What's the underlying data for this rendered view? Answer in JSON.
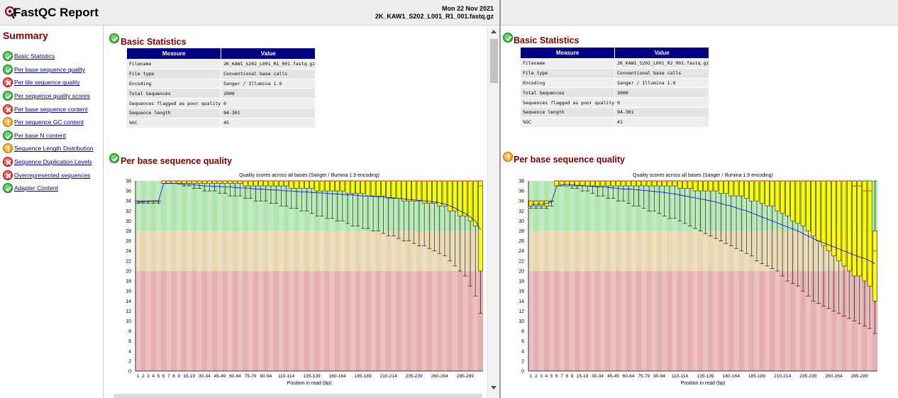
{
  "header": {
    "app_title": "FastQC Report",
    "date": "Mon 22 Nov 2021",
    "filename": "2K_KAW1_S202_L001_R1_001.fastq.gz"
  },
  "summary": {
    "title": "Summary",
    "items": [
      {
        "label": "Basic Statistics",
        "status": "pass"
      },
      {
        "label": "Per base sequence quality",
        "status": "pass"
      },
      {
        "label": "Per tile sequence quality",
        "status": "fail"
      },
      {
        "label": "Per sequence quality scores",
        "status": "pass"
      },
      {
        "label": "Per base sequence content",
        "status": "fail"
      },
      {
        "label": "Per sequence GC content",
        "status": "warn"
      },
      {
        "label": "Per base N content",
        "status": "pass"
      },
      {
        "label": "Sequence Length Distribution",
        "status": "warn"
      },
      {
        "label": "Sequence Duplication Levels",
        "status": "fail"
      },
      {
        "label": "Overrepresented sequences",
        "status": "fail"
      },
      {
        "label": "Adapter Content",
        "status": "pass"
      }
    ]
  },
  "left": {
    "basic_title": "Basic Statistics",
    "basic_status": "pass",
    "table_headers": [
      "Measure",
      "Value"
    ],
    "rows": [
      {
        "measure": "Filename",
        "value": "2K_KAW1_S202_L001_R1_001.fastq.gz"
      },
      {
        "measure": "File type",
        "value": "Conventional base calls"
      },
      {
        "measure": "Encoding",
        "value": "Sanger / Illumina 1.9"
      },
      {
        "measure": "Total Sequences",
        "value": "2000"
      },
      {
        "measure": "Sequences flagged as poor quality",
        "value": "0"
      },
      {
        "measure": "Sequence length",
        "value": "94-301"
      },
      {
        "measure": "%GC",
        "value": "45"
      }
    ],
    "quality_title": "Per base sequence quality",
    "quality_status": "pass"
  },
  "right": {
    "basic_title": "Basic Statistics",
    "basic_status": "pass",
    "table_headers": [
      "Measure",
      "Value"
    ],
    "rows": [
      {
        "measure": "Filename",
        "value": "2K_KAW1_S202_L001_R2_001.fastq.gz"
      },
      {
        "measure": "File type",
        "value": "Conventional base calls"
      },
      {
        "measure": "Encoding",
        "value": "Sanger / Illumina 1.9"
      },
      {
        "measure": "Total Sequences",
        "value": "2000"
      },
      {
        "measure": "Sequences flagged as poor quality",
        "value": "0"
      },
      {
        "measure": "Sequence length",
        "value": "94-301"
      },
      {
        "measure": "%GC",
        "value": "41"
      }
    ],
    "quality_title": "Per base sequence quality",
    "quality_status": "warn"
  },
  "chart_data": [
    {
      "type": "boxplot",
      "title": "Quality scores across all bases (Sanger / Illumina 1.9 encoding)",
      "xlabel": "Position in read (bp)",
      "ylim": [
        0,
        38
      ],
      "yticks": [
        0,
        2,
        4,
        6,
        8,
        10,
        12,
        14,
        16,
        18,
        20,
        22,
        24,
        26,
        28,
        30,
        32,
        34,
        36,
        38
      ],
      "bands": [
        {
          "from": 0,
          "to": 20,
          "color": "#e6afaf"
        },
        {
          "from": 20,
          "to": 28,
          "color": "#e6d7af"
        },
        {
          "from": 28,
          "to": 38,
          "color": "#afe6af"
        }
      ],
      "categories": [
        "1",
        "2",
        "3",
        "4",
        "5",
        "6",
        "7",
        "8",
        "9",
        "10-14",
        "15-19",
        "20-24",
        "25-29",
        "30-34",
        "35-39",
        "40-44",
        "45-49",
        "50-54",
        "55-59",
        "60-64",
        "65-69",
        "70-74",
        "75-79",
        "80-84",
        "85-89",
        "90-94",
        "95-99",
        "100-104",
        "105-109",
        "110-114",
        "115-119",
        "120-124",
        "125-129",
        "130-134",
        "135-139",
        "140-144",
        "145-149",
        "150-154",
        "155-159",
        "160-164",
        "165-169",
        "170-174",
        "175-179",
        "180-184",
        "185-189",
        "190-194",
        "195-199",
        "200-204",
        "205-209",
        "210-214",
        "215-219",
        "220-224",
        "225-229",
        "230-234",
        "235-239",
        "240-244",
        "245-249",
        "250-254",
        "255-259",
        "260-264",
        "265-269",
        "270-274",
        "275-279",
        "280-284",
        "285-289",
        "290-294",
        "295-299",
        "300-301"
      ],
      "shown_labels": [
        "1",
        "2",
        "3",
        "4",
        "5",
        "6",
        "7",
        "8",
        "9",
        "15-19",
        "30-34",
        "45-49",
        "60-64",
        "75-79",
        "90-94",
        "110-114",
        "135-139",
        "160-164",
        "185-189",
        "210-214",
        "235-239",
        "260-264",
        "285-289"
      ],
      "median": [
        34,
        34,
        34,
        34,
        34,
        38,
        38,
        38,
        38,
        38,
        38,
        38,
        38,
        38,
        38,
        38,
        38,
        38,
        38,
        38,
        38,
        38,
        38,
        38,
        38,
        38,
        38,
        38,
        38,
        38,
        38,
        38,
        38,
        38,
        38,
        38,
        38,
        38,
        38,
        38,
        38,
        38,
        38,
        38,
        38,
        38,
        38,
        38,
        38,
        38,
        38,
        38,
        38,
        38,
        38,
        38,
        38,
        38,
        38,
        38,
        38,
        38,
        38,
        38,
        38,
        38,
        38,
        37
      ],
      "q1": [
        34,
        34,
        34,
        34,
        34,
        37.5,
        37.5,
        37.5,
        37.5,
        37.5,
        37.5,
        37.5,
        37.5,
        37.5,
        37.5,
        37.5,
        37.5,
        37.5,
        37.5,
        37.5,
        37.5,
        37,
        37,
        37,
        37,
        37,
        37,
        37,
        37,
        37,
        36.5,
        36.5,
        36.5,
        36.5,
        36.5,
        36,
        36,
        36,
        36,
        36,
        36,
        35.5,
        35.5,
        35.5,
        35.5,
        35,
        35,
        35,
        35,
        34.5,
        34.5,
        34.5,
        34,
        34,
        34,
        34,
        33.5,
        33.5,
        33.5,
        33,
        33,
        32,
        32,
        31,
        31,
        30,
        29,
        20
      ],
      "q3": [
        34,
        34,
        34,
        34,
        34,
        38,
        38,
        38,
        38,
        38,
        38,
        38,
        38,
        38,
        38,
        38,
        38,
        38,
        38,
        38,
        38,
        38,
        38,
        38,
        38,
        38,
        38,
        38,
        38,
        38,
        38,
        38,
        38,
        38,
        38,
        38,
        38,
        38,
        38,
        38,
        38,
        38,
        38,
        38,
        38,
        38,
        38,
        38,
        38,
        38,
        38,
        38,
        38,
        38,
        38,
        38,
        38,
        38,
        38,
        38,
        38,
        38,
        38,
        38,
        38,
        38,
        38,
        38
      ],
      "p10": [
        33.5,
        33.5,
        33.5,
        33.5,
        33.5,
        37.5,
        37.5,
        37.5,
        37.5,
        37,
        37,
        36.5,
        36.5,
        36,
        36,
        36,
        35.5,
        35.5,
        35,
        35,
        35,
        34.5,
        34.5,
        34,
        34,
        34,
        33.5,
        33.5,
        33,
        33,
        32.5,
        32.5,
        32,
        32,
        31.5,
        31,
        31,
        30.5,
        30.5,
        30,
        30,
        29.5,
        29,
        29,
        28.5,
        28.5,
        28,
        28,
        27.5,
        27,
        27,
        26.5,
        26,
        26,
        25.5,
        25,
        25,
        24.5,
        24,
        23.5,
        23,
        22,
        21,
        20,
        19,
        17,
        15,
        11.5
      ],
      "p90": [
        34,
        34,
        34,
        34,
        34,
        38,
        38,
        38,
        38,
        38,
        38,
        38,
        38,
        38,
        38,
        38,
        38,
        38,
        38,
        38,
        38,
        38,
        38,
        38,
        38,
        38,
        38,
        38,
        38,
        38,
        38,
        38,
        38,
        38,
        38,
        38,
        38,
        38,
        38,
        38,
        38,
        38,
        38,
        38,
        38,
        38,
        38,
        38,
        38,
        38,
        38,
        38,
        38,
        38,
        38,
        38,
        38,
        38,
        38,
        38,
        38,
        38,
        38,
        38,
        38,
        38,
        38,
        38
      ],
      "mean": [
        33.7,
        33.8,
        33.9,
        34,
        34,
        37.5,
        37.5,
        37.5,
        37.4,
        37.3,
        37.3,
        37.2,
        37.1,
        37,
        37,
        36.9,
        36.9,
        36.8,
        36.8,
        36.7,
        36.6,
        36.6,
        36.5,
        36.4,
        36.4,
        36.3,
        36.2,
        36.2,
        36.1,
        36,
        36,
        35.9,
        35.8,
        35.8,
        35.7,
        35.6,
        35.6,
        35.5,
        35.4,
        35.4,
        35.3,
        35.2,
        35.2,
        35.1,
        35,
        35,
        34.9,
        34.8,
        34.8,
        34.7,
        34.6,
        34.5,
        34.4,
        34.3,
        34.2,
        34.1,
        34,
        33.9,
        33.8,
        33.6,
        33.4,
        33,
        32.6,
        32,
        31.5,
        30.8,
        30,
        28.2
      ]
    },
    {
      "type": "boxplot",
      "title": "Quality scores across all bases (Sanger / Illumina 1.9 encoding)",
      "xlabel": "Position in read (bp)",
      "ylim": [
        0,
        38
      ],
      "yticks": [
        0,
        2,
        4,
        6,
        8,
        10,
        12,
        14,
        16,
        18,
        20,
        22,
        24,
        26,
        28,
        30,
        32,
        34,
        36,
        38
      ],
      "bands": [
        {
          "from": 0,
          "to": 20,
          "color": "#e6afaf"
        },
        {
          "from": 20,
          "to": 28,
          "color": "#e6d7af"
        },
        {
          "from": 28,
          "to": 38,
          "color": "#afe6af"
        }
      ],
      "categories": [
        "1",
        "2",
        "3",
        "4",
        "5",
        "6",
        "7",
        "8",
        "9",
        "10-14",
        "15-19",
        "20-24",
        "25-29",
        "30-34",
        "35-39",
        "40-44",
        "45-49",
        "50-54",
        "55-59",
        "60-64",
        "65-69",
        "70-74",
        "75-79",
        "80-84",
        "85-89",
        "90-94",
        "95-99",
        "100-104",
        "105-109",
        "110-114",
        "115-119",
        "120-124",
        "125-129",
        "130-134",
        "135-139",
        "140-144",
        "145-149",
        "150-154",
        "155-159",
        "160-164",
        "165-169",
        "170-174",
        "175-179",
        "180-184",
        "185-189",
        "190-194",
        "195-199",
        "200-204",
        "205-209",
        "210-214",
        "215-219",
        "220-224",
        "225-229",
        "230-234",
        "235-239",
        "240-244",
        "245-249",
        "250-254",
        "255-259",
        "260-264",
        "265-269",
        "270-274",
        "275-279",
        "280-284",
        "285-289",
        "290-294",
        "295-299",
        "300-301"
      ],
      "shown_labels": [
        "1",
        "2",
        "3",
        "4",
        "5",
        "6",
        "7",
        "8",
        "9",
        "15-19",
        "30-34",
        "45-49",
        "60-64",
        "75-79",
        "90-94",
        "110-114",
        "135-139",
        "160-164",
        "185-189",
        "210-214",
        "235-239",
        "260-264",
        "285-289"
      ],
      "median": [
        34,
        34,
        34,
        34,
        34,
        38,
        38,
        38,
        38,
        38,
        38,
        38,
        38,
        38,
        38,
        38,
        38,
        38,
        38,
        38,
        38,
        38,
        38,
        38,
        38,
        38,
        38,
        38,
        38,
        38,
        38,
        38,
        38,
        38,
        38,
        38,
        38,
        38,
        38,
        38,
        38,
        38,
        38,
        38,
        38,
        38,
        38,
        38,
        38,
        38,
        38,
        38,
        38,
        38,
        38,
        38,
        38,
        38,
        38,
        38,
        38,
        38,
        38,
        37,
        37,
        36,
        36,
        24
      ],
      "q1": [
        33,
        33,
        33,
        33,
        34,
        37,
        37,
        37,
        37,
        37,
        37,
        37,
        37,
        37,
        37,
        37,
        37,
        37,
        37,
        37,
        37,
        37,
        37,
        37,
        37,
        37,
        37,
        37,
        37,
        36.5,
        36.5,
        36.5,
        36,
        36,
        36,
        36,
        36,
        35.5,
        35.5,
        35,
        35,
        35,
        34.5,
        34,
        34,
        33.5,
        33,
        33,
        32,
        31.5,
        31,
        30,
        29.5,
        29,
        28,
        27,
        26,
        25,
        24,
        23,
        22,
        21,
        20,
        19,
        19,
        18,
        17,
        14
      ],
      "q3": [
        34,
        34,
        34,
        34,
        34,
        38,
        38,
        38,
        38,
        38,
        38,
        38,
        38,
        38,
        38,
        38,
        38,
        38,
        38,
        38,
        38,
        38,
        38,
        38,
        38,
        38,
        38,
        38,
        38,
        38,
        38,
        38,
        38,
        38,
        38,
        38,
        38,
        38,
        38,
        38,
        38,
        38,
        38,
        38,
        38,
        38,
        38,
        38,
        38,
        38,
        38,
        38,
        38,
        38,
        38,
        38,
        38,
        38,
        38,
        38,
        38,
        38,
        38,
        38,
        38,
        38,
        38,
        28
      ],
      "p10": [
        32.5,
        32.5,
        32.5,
        32.5,
        33,
        37,
        37,
        37,
        36.5,
        36.5,
        36,
        36,
        35.5,
        35,
        35,
        34.5,
        34.5,
        34,
        34,
        33.5,
        33,
        33,
        32.5,
        32,
        32,
        31.5,
        31,
        30.5,
        30.5,
        30,
        29.5,
        29,
        28.5,
        28,
        27.5,
        27,
        26.5,
        26,
        25.5,
        25,
        24.5,
        24,
        23.5,
        23,
        22,
        21.5,
        21,
        20.5,
        20,
        19,
        18,
        17.5,
        17,
        16,
        15,
        14,
        13.5,
        13,
        12.5,
        12,
        11.5,
        11,
        10.5,
        10,
        9.5,
        9,
        8.5,
        7.5
      ],
      "p90": [
        34,
        34,
        34,
        34,
        34,
        38,
        38,
        38,
        38,
        38,
        38,
        38,
        38,
        38,
        38,
        38,
        38,
        38,
        38,
        38,
        38,
        38,
        38,
        38,
        38,
        38,
        38,
        38,
        38,
        38,
        38,
        38,
        38,
        38,
        38,
        38,
        38,
        38,
        38,
        38,
        38,
        38,
        38,
        38,
        38,
        38,
        38,
        38,
        38,
        38,
        38,
        38,
        38,
        38,
        38,
        38,
        38,
        38,
        38,
        38,
        38,
        38,
        38,
        38,
        38,
        38,
        38,
        38
      ],
      "mean": [
        33.3,
        33.3,
        33.3,
        33.5,
        33.8,
        37,
        37.2,
        37.3,
        37.2,
        37.1,
        37.1,
        37,
        36.9,
        36.8,
        36.8,
        36.7,
        36.6,
        36.5,
        36.4,
        36.4,
        36.3,
        36.2,
        36.1,
        36,
        35.9,
        35.8,
        35.7,
        35.5,
        35.4,
        35.2,
        35,
        34.8,
        34.6,
        34.4,
        34.2,
        34,
        33.8,
        33.5,
        33.2,
        33,
        32.6,
        32.3,
        32,
        31.6,
        31.2,
        30.8,
        30.4,
        30,
        29.6,
        29.2,
        28.8,
        28.4,
        28,
        27.5,
        27,
        26.5,
        26,
        25.6,
        25.2,
        24.8,
        24.4,
        24,
        23.6,
        23.2,
        22.8,
        22.5,
        22,
        21.5
      ]
    }
  ]
}
